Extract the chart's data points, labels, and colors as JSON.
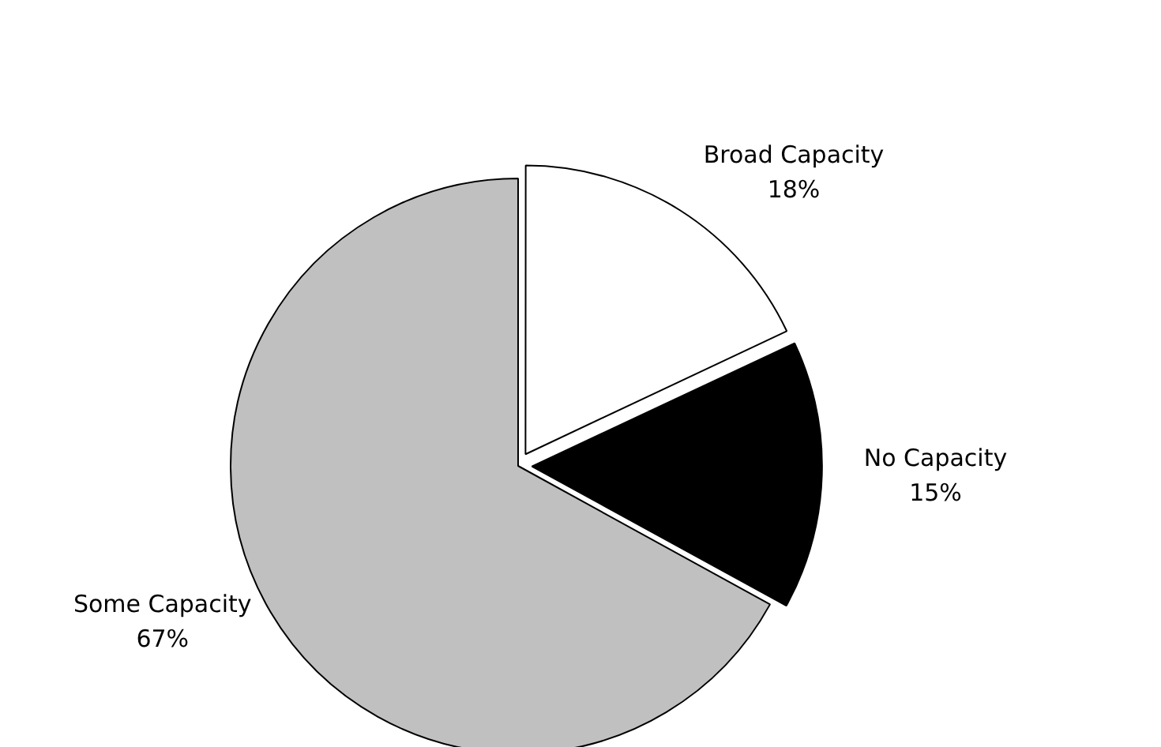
{
  "chart_data": {
    "type": "pie",
    "categories": [
      "Broad Capacity",
      "No Capacity",
      "Some Capacity"
    ],
    "values": [
      18,
      15,
      67
    ],
    "colors": [
      "#ffffff",
      "#000000",
      "#c0c0c0"
    ],
    "value_labels": [
      "18%",
      "15%",
      "67%"
    ]
  }
}
